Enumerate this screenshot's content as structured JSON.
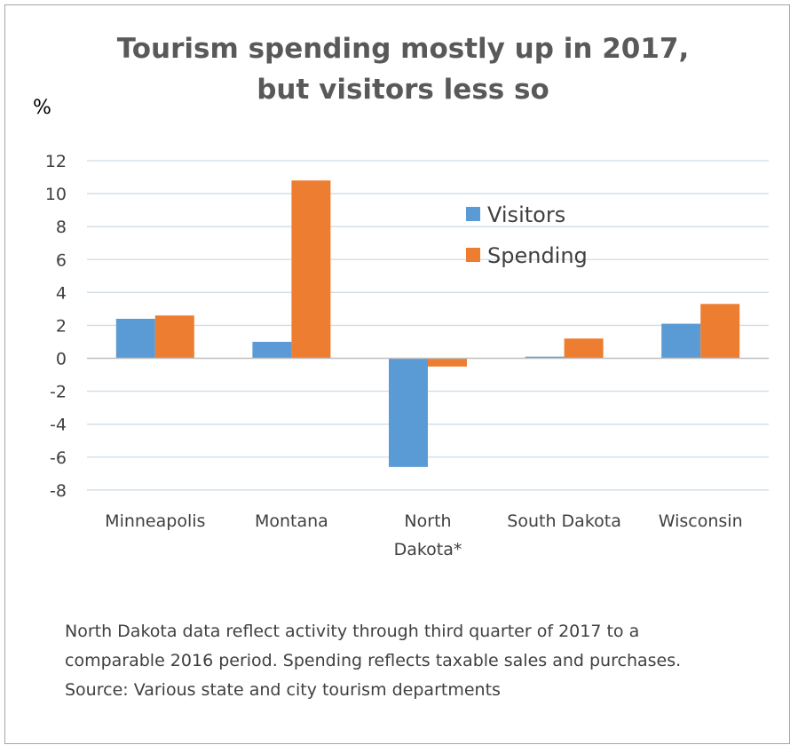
{
  "chart_data": {
    "type": "bar",
    "title": [
      "Tourism spending mostly up in 2017,",
      "but visitors less so"
    ],
    "ylabel": "%",
    "ylim": [
      -8,
      12
    ],
    "yticks": [
      12,
      10,
      8,
      6,
      4,
      2,
      0,
      -2,
      -4,
      -6,
      -8
    ],
    "grid": true,
    "legend_position": "top-right",
    "categories": [
      [
        "Minneapolis"
      ],
      [
        "Montana"
      ],
      [
        "North",
        "Dakota*"
      ],
      [
        "South Dakota"
      ],
      [
        "Wisconsin"
      ]
    ],
    "series": [
      {
        "name": "Visitors",
        "color": "#5b9bd5",
        "values": [
          2.4,
          1.0,
          -6.6,
          0.1,
          2.1
        ]
      },
      {
        "name": "Spending",
        "color": "#ed7d31",
        "values": [
          2.6,
          10.8,
          -0.5,
          1.2,
          3.3
        ]
      }
    ],
    "footnote": [
      "North Dakota data reflect activity through third quarter of 2017 to a",
      "comparable 2016 period. Spending reflects taxable sales and purchases.",
      "Source: Various state and city tourism departments"
    ]
  }
}
